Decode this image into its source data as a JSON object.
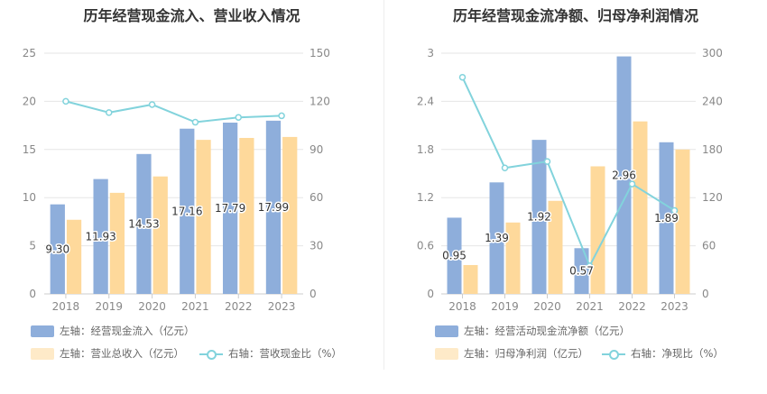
{
  "colors": {
    "bar1": "#8eaedb",
    "bar2": "#fed99b",
    "line": "#82d3dc",
    "grid": "#e6e6e6",
    "axis": "#cccccc"
  },
  "chart_data": [
    {
      "type": "bar",
      "title": "历年经营现金流入、营业收入情况",
      "categories": [
        "2018",
        "2019",
        "2020",
        "2021",
        "2022",
        "2023"
      ],
      "y_left": {
        "ticks": [
          "0",
          "5",
          "10",
          "15",
          "20",
          "25"
        ],
        "min": 0,
        "max": 25
      },
      "y_right": {
        "ticks": [
          "0",
          "30",
          "60",
          "90",
          "120",
          "150"
        ],
        "min": 0,
        "max": 150
      },
      "grid": true,
      "series": [
        {
          "name": "左轴：经营现金流入（亿元）",
          "kind": "bar",
          "axis": "left",
          "values": [
            9.3,
            11.93,
            14.53,
            17.16,
            17.79,
            17.99
          ],
          "labels": [
            "9.30",
            "11.93",
            "14.53",
            "17.16",
            "17.79",
            "17.99"
          ]
        },
        {
          "name": "左轴：营业总收入（亿元）",
          "kind": "bar",
          "axis": "left",
          "values": [
            7.7,
            10.5,
            12.2,
            16.0,
            16.2,
            16.3
          ],
          "labels": []
        },
        {
          "name": "右轴：营收现金比（%）",
          "kind": "line",
          "axis": "right",
          "values": [
            120,
            113,
            118,
            107,
            110,
            111
          ],
          "labels": []
        }
      ],
      "legend": {
        "position": "bottom-left"
      }
    },
    {
      "type": "bar",
      "title": "历年经营现金流净额、归母净利润情况",
      "categories": [
        "2018",
        "2019",
        "2020",
        "2021",
        "2022",
        "2023"
      ],
      "y_left": {
        "ticks": [
          "0",
          "0.6",
          "1.2",
          "1.8",
          "2.4",
          "3"
        ],
        "min": 0,
        "max": 3
      },
      "y_right": {
        "ticks": [
          "0",
          "60",
          "120",
          "180",
          "240",
          "300"
        ],
        "min": 0,
        "max": 300
      },
      "grid": true,
      "series": [
        {
          "name": "左轴：经营活动现金流净额（亿元）",
          "kind": "bar",
          "axis": "left",
          "values": [
            0.95,
            1.39,
            1.92,
            0.57,
            2.96,
            1.89
          ],
          "labels": [
            "0.95",
            "1.39",
            "1.92",
            "0.57",
            "2.96",
            "1.89"
          ]
        },
        {
          "name": "左轴：归母净利润（亿元）",
          "kind": "bar",
          "axis": "left",
          "values": [
            0.36,
            0.89,
            1.16,
            1.59,
            2.15,
            1.8
          ],
          "labels": []
        },
        {
          "name": "右轴：净现比（%）",
          "kind": "line",
          "axis": "right",
          "values": [
            270,
            157,
            165,
            35,
            137,
            104
          ],
          "labels": []
        }
      ],
      "legend": {
        "position": "bottom-left"
      }
    }
  ]
}
